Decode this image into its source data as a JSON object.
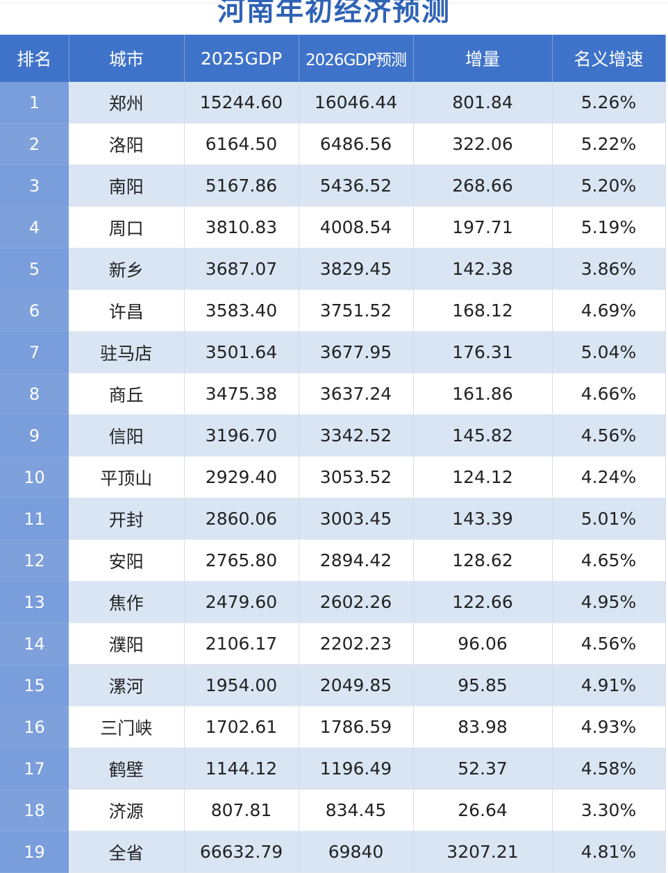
{
  "title": "河南年初经济预测",
  "colors": {
    "header_bg": "#3f73c9",
    "rank_col_bg": "#7ea1dc",
    "row_alt_bg": "#d9e5f3",
    "title_color": "#2f62b5"
  },
  "table": {
    "headers": [
      "排名",
      "城市",
      "2025GDP",
      "2026GDP预测",
      "增量",
      "名义增速"
    ],
    "rows": [
      {
        "rank": "1",
        "city": "郑州",
        "gdp2025": "15244.60",
        "gdp2026": "16046.44",
        "increase": "801.84",
        "growth": "5.26%"
      },
      {
        "rank": "2",
        "city": "洛阳",
        "gdp2025": "6164.50",
        "gdp2026": "6486.56",
        "increase": "322.06",
        "growth": "5.22%"
      },
      {
        "rank": "3",
        "city": "南阳",
        "gdp2025": "5167.86",
        "gdp2026": "5436.52",
        "increase": "268.66",
        "growth": "5.20%"
      },
      {
        "rank": "4",
        "city": "周口",
        "gdp2025": "3810.83",
        "gdp2026": "4008.54",
        "increase": "197.71",
        "growth": "5.19%"
      },
      {
        "rank": "5",
        "city": "新乡",
        "gdp2025": "3687.07",
        "gdp2026": "3829.45",
        "increase": "142.38",
        "growth": "3.86%"
      },
      {
        "rank": "6",
        "city": "许昌",
        "gdp2025": "3583.40",
        "gdp2026": "3751.52",
        "increase": "168.12",
        "growth": "4.69%"
      },
      {
        "rank": "7",
        "city": "驻马店",
        "gdp2025": "3501.64",
        "gdp2026": "3677.95",
        "increase": "176.31",
        "growth": "5.04%"
      },
      {
        "rank": "8",
        "city": "商丘",
        "gdp2025": "3475.38",
        "gdp2026": "3637.24",
        "increase": "161.86",
        "growth": "4.66%"
      },
      {
        "rank": "9",
        "city": "信阳",
        "gdp2025": "3196.70",
        "gdp2026": "3342.52",
        "increase": "145.82",
        "growth": "4.56%"
      },
      {
        "rank": "10",
        "city": "平顶山",
        "gdp2025": "2929.40",
        "gdp2026": "3053.52",
        "increase": "124.12",
        "growth": "4.24%"
      },
      {
        "rank": "11",
        "city": "开封",
        "gdp2025": "2860.06",
        "gdp2026": "3003.45",
        "increase": "143.39",
        "growth": "5.01%"
      },
      {
        "rank": "12",
        "city": "安阳",
        "gdp2025": "2765.80",
        "gdp2026": "2894.42",
        "increase": "128.62",
        "growth": "4.65%"
      },
      {
        "rank": "13",
        "city": "焦作",
        "gdp2025": "2479.60",
        "gdp2026": "2602.26",
        "increase": "122.66",
        "growth": "4.95%"
      },
      {
        "rank": "14",
        "city": "濮阳",
        "gdp2025": "2106.17",
        "gdp2026": "2202.23",
        "increase": "96.06",
        "growth": "4.56%"
      },
      {
        "rank": "15",
        "city": "漯河",
        "gdp2025": "1954.00",
        "gdp2026": "2049.85",
        "increase": "95.85",
        "growth": "4.91%"
      },
      {
        "rank": "16",
        "city": "三门峡",
        "gdp2025": "1702.61",
        "gdp2026": "1786.59",
        "increase": "83.98",
        "growth": "4.93%"
      },
      {
        "rank": "17",
        "city": "鹤壁",
        "gdp2025": "1144.12",
        "gdp2026": "1196.49",
        "increase": "52.37",
        "growth": "4.58%"
      },
      {
        "rank": "18",
        "city": "济源",
        "gdp2025": "807.81",
        "gdp2026": "834.45",
        "increase": "26.64",
        "growth": "3.30%"
      },
      {
        "rank": "19",
        "city": "全省",
        "gdp2025": "66632.79",
        "gdp2026": "69840",
        "increase": "3207.21",
        "growth": "4.81%"
      }
    ]
  }
}
